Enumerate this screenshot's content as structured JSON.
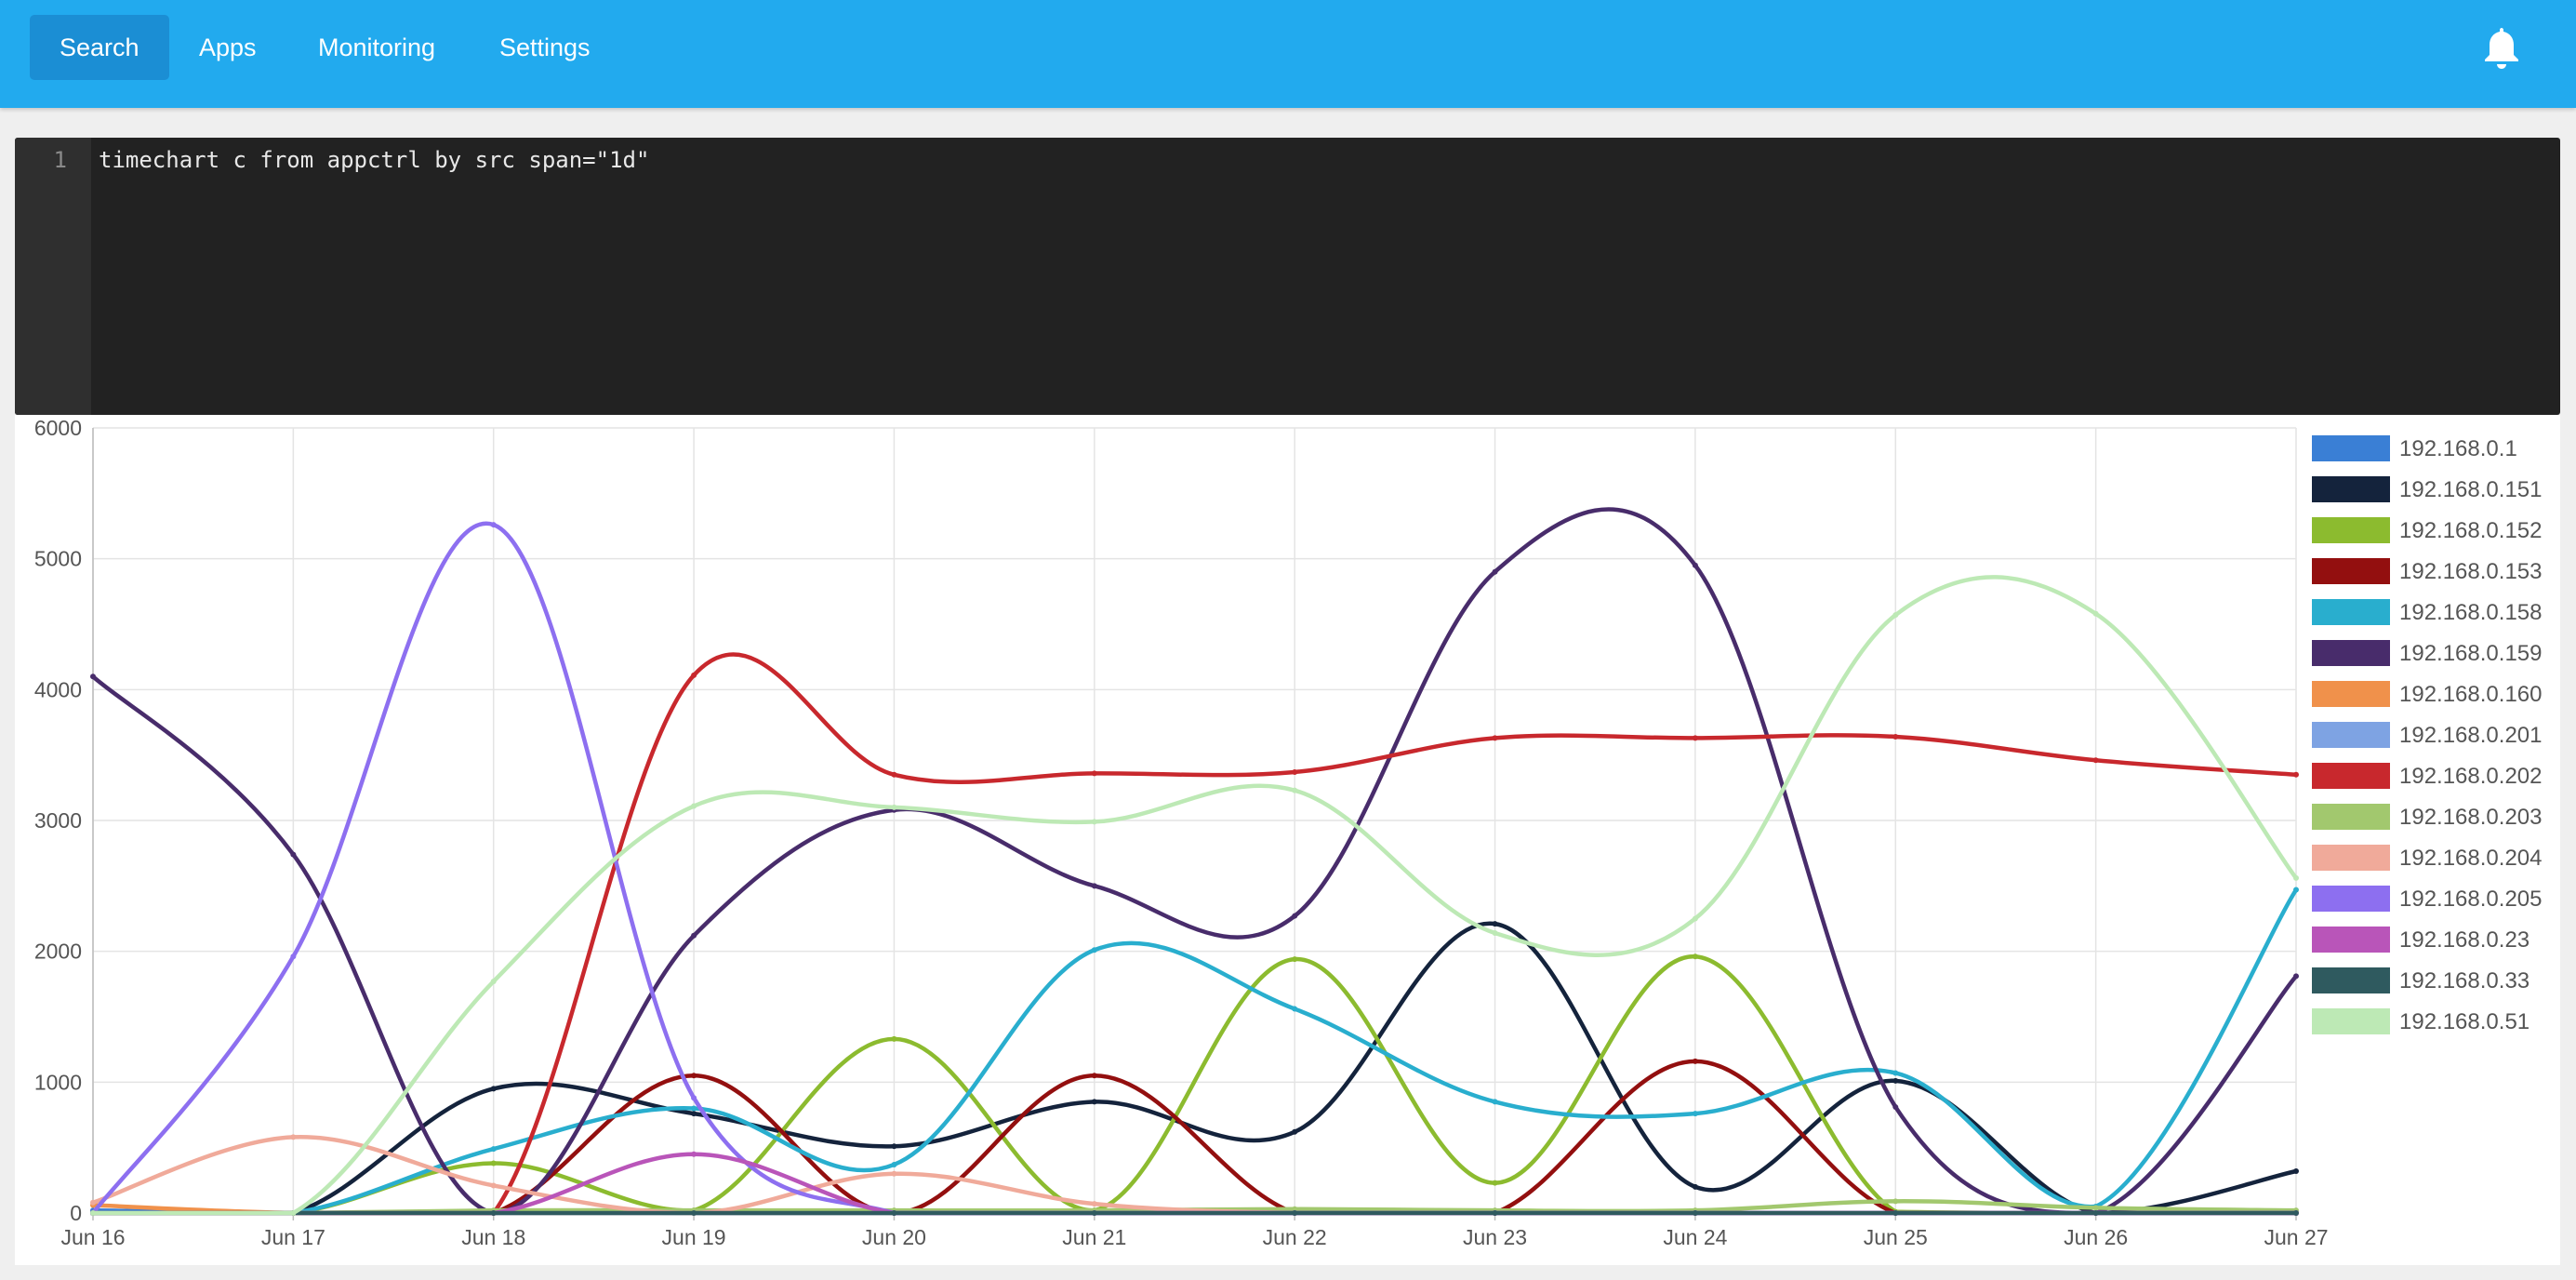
{
  "nav": {
    "items": [
      {
        "label": "Search",
        "active": true
      },
      {
        "label": "Apps",
        "active": false
      },
      {
        "label": "Monitoring",
        "active": false
      },
      {
        "label": "Settings",
        "active": false
      }
    ],
    "notifications_icon": "bell-icon"
  },
  "editor": {
    "line_number": "1",
    "query": "timechart c from appctrl by src span=\"1d\""
  },
  "chart_data": {
    "type": "line",
    "title": "",
    "xlabel": "",
    "ylabel": "",
    "categories": [
      "Jun 16",
      "Jun 17",
      "Jun 18",
      "Jun 19",
      "Jun 20",
      "Jun 21",
      "Jun 22",
      "Jun 23",
      "Jun 24",
      "Jun 25",
      "Jun 26",
      "Jun 27"
    ],
    "ylim": [
      0,
      6000
    ],
    "yticks": [
      0,
      1000,
      2000,
      3000,
      4000,
      5000,
      6000
    ],
    "grid": true,
    "legend": "right",
    "series": [
      {
        "name": "192.168.0.1",
        "color": "#3a7fd5",
        "values": [
          20,
          0,
          10,
          0,
          0,
          0,
          0,
          0,
          0,
          0,
          0,
          0
        ]
      },
      {
        "name": "192.168.0.151",
        "color": "#14233c",
        "values": [
          0,
          0,
          950,
          760,
          510,
          850,
          620,
          2210,
          200,
          1010,
          0,
          320
        ]
      },
      {
        "name": "192.168.0.152",
        "color": "#8cbb2f",
        "values": [
          0,
          0,
          380,
          20,
          1330,
          20,
          1940,
          230,
          1960,
          10,
          0,
          0
        ]
      },
      {
        "name": "192.168.0.153",
        "color": "#930f0f",
        "values": [
          0,
          0,
          0,
          1050,
          0,
          1050,
          0,
          0,
          1160,
          0,
          0,
          0
        ]
      },
      {
        "name": "192.168.0.158",
        "color": "#29aece",
        "values": [
          0,
          0,
          490,
          800,
          370,
          2010,
          1560,
          850,
          760,
          1070,
          50,
          2470
        ]
      },
      {
        "name": "192.168.0.159",
        "color": "#482c6b",
        "values": [
          4100,
          2740,
          0,
          2120,
          3080,
          2500,
          2270,
          4900,
          4950,
          810,
          0,
          1810
        ]
      },
      {
        "name": "192.168.0.160",
        "color": "#f0914b",
        "values": [
          60,
          0,
          0,
          0,
          0,
          0,
          0,
          0,
          0,
          0,
          0,
          0
        ]
      },
      {
        "name": "192.168.0.201",
        "color": "#7ea3e3",
        "values": [
          0,
          0,
          0,
          0,
          0,
          0,
          0,
          0,
          0,
          0,
          0,
          0
        ]
      },
      {
        "name": "192.168.0.202",
        "color": "#c8282d",
        "values": [
          0,
          0,
          0,
          4110,
          3350,
          3360,
          3370,
          3630,
          3630,
          3640,
          3460,
          3350
        ]
      },
      {
        "name": "192.168.0.203",
        "color": "#a2c86e",
        "values": [
          0,
          0,
          20,
          20,
          20,
          20,
          30,
          20,
          20,
          90,
          40,
          20
        ]
      },
      {
        "name": "192.168.0.204",
        "color": "#f0aa9a",
        "values": [
          80,
          580,
          210,
          0,
          300,
          70,
          0,
          0,
          0,
          0,
          0,
          0
        ]
      },
      {
        "name": "192.168.0.205",
        "color": "#8d6ff0",
        "values": [
          0,
          1960,
          5260,
          880,
          0,
          0,
          0,
          0,
          0,
          0,
          0,
          0
        ]
      },
      {
        "name": "192.168.0.23",
        "color": "#b955b9",
        "values": [
          0,
          0,
          0,
          450,
          0,
          0,
          0,
          0,
          0,
          0,
          0,
          0
        ]
      },
      {
        "name": "192.168.0.33",
        "color": "#2f5a5f",
        "values": [
          0,
          0,
          0,
          0,
          0,
          0,
          0,
          0,
          0,
          0,
          0,
          0
        ]
      },
      {
        "name": "192.168.0.51",
        "color": "#bde9b5",
        "values": [
          0,
          0,
          1770,
          3110,
          3100,
          2990,
          3230,
          2140,
          2250,
          4570,
          4580,
          2560
        ]
      }
    ]
  }
}
